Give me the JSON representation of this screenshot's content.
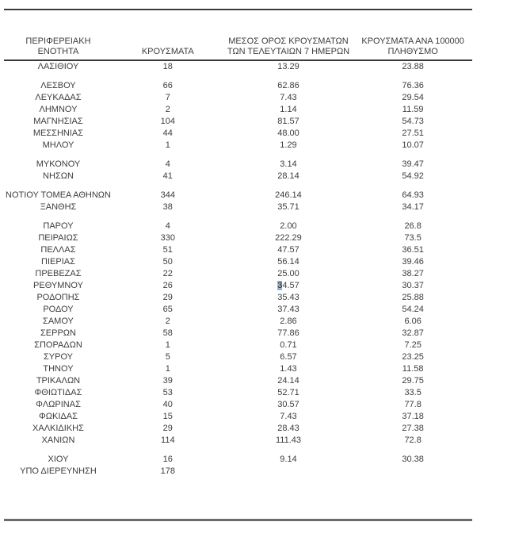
{
  "table": {
    "columns": [
      {
        "name": "region",
        "line1": "",
        "line2": "ΠΕΡΙΦΕΡΕΙΑΚΗ ΕΝΟΤΗΤΑ"
      },
      {
        "name": "cases",
        "line1": "",
        "line2": "ΚΡΟΥΣΜΑΤΑ"
      },
      {
        "name": "avg7",
        "line1": "ΜΕΣΟΣ ΟΡΟΣ ΚΡΟΥΣΜΑΤΩΝ",
        "line2": "ΤΩΝ ΤΕΛΕΥΤΑΙΩΝ 7 ΗΜΕΡΩΝ"
      },
      {
        "name": "per100k",
        "line1": "ΚΡΟΥΣΜΑΤΑ ΑΝΑ 100000",
        "line2": "ΠΛΗΘΥΣΜΟ"
      }
    ],
    "rows": [
      {
        "region": "ΛΑΣΙΘΙΟΥ",
        "cases": "18",
        "avg7": "13.29",
        "per100k": "23.88",
        "gap_before": false
      },
      {
        "region": "ΛΕΣΒΟΥ",
        "cases": "66",
        "avg7": "62.86",
        "per100k": "76.36",
        "gap_before": true
      },
      {
        "region": "ΛΕΥΚΑΔΑΣ",
        "cases": "7",
        "avg7": "7.43",
        "per100k": "29.54",
        "gap_before": false
      },
      {
        "region": "ΛΗΜΝΟΥ",
        "cases": "2",
        "avg7": "1.14",
        "per100k": "11.59",
        "gap_before": false
      },
      {
        "region": "ΜΑΓΝΗΣΙΑΣ",
        "cases": "104",
        "avg7": "81.57",
        "per100k": "54.73",
        "gap_before": false
      },
      {
        "region": "ΜΕΣΣΗΝΙΑΣ",
        "cases": "44",
        "avg7": "48.00",
        "per100k": "27.51",
        "gap_before": false
      },
      {
        "region": "ΜΗΛΟΥ",
        "cases": "1",
        "avg7": "1.29",
        "per100k": "10.07",
        "gap_before": false
      },
      {
        "region": "ΜΥΚΟΝΟΥ",
        "cases": "4",
        "avg7": "3.14",
        "per100k": "39.47",
        "gap_before": true
      },
      {
        "region": "ΝΗΣΩΝ",
        "cases": "41",
        "avg7": "28.14",
        "per100k": "54.92",
        "gap_before": false
      },
      {
        "region": "ΝΟΤΙΟΥ ΤΟΜΕΑ ΑΘΗΝΩΝ",
        "cases": "344",
        "avg7": "246.14",
        "per100k": "64.93",
        "gap_before": true
      },
      {
        "region": "ΞΑΝΘΗΣ",
        "cases": "38",
        "avg7": "35.71",
        "per100k": "34.17",
        "gap_before": false
      },
      {
        "region": "ΠΑΡΟΥ",
        "cases": "4",
        "avg7": "2.00",
        "per100k": "26.8",
        "gap_before": true
      },
      {
        "region": "ΠΕΙΡΑΙΩΣ",
        "cases": "330",
        "avg7": "222.29",
        "per100k": "73.5",
        "gap_before": false
      },
      {
        "region": "ΠΕΛΛΑΣ",
        "cases": "51",
        "avg7": "47.57",
        "per100k": "36.51",
        "gap_before": false
      },
      {
        "region": "ΠΙΕΡΙΑΣ",
        "cases": "50",
        "avg7": "56.14",
        "per100k": "39.46",
        "gap_before": false
      },
      {
        "region": "ΠΡΕΒΕΖΑΣ",
        "cases": "22",
        "avg7": "25.00",
        "per100k": "38.27",
        "gap_before": false
      },
      {
        "region": "ΡΕΘΥΜΝΟΥ",
        "cases": "26",
        "avg7": "34.57",
        "per100k": "30.37",
        "gap_before": false
      },
      {
        "region": "ΡΟΔΟΠΗΣ",
        "cases": "29",
        "avg7": "35.43",
        "per100k": "25.88",
        "gap_before": false
      },
      {
        "region": "ΡΟΔΟΥ",
        "cases": "65",
        "avg7": "37.43",
        "per100k": "54.24",
        "gap_before": false
      },
      {
        "region": "ΣΑΜΟΥ",
        "cases": "2",
        "avg7": "2.86",
        "per100k": "6.06",
        "gap_before": false
      },
      {
        "region": "ΣΕΡΡΩΝ",
        "cases": "58",
        "avg7": "77.86",
        "per100k": "32.87",
        "gap_before": false
      },
      {
        "region": "ΣΠΟΡΑΔΩΝ",
        "cases": "1",
        "avg7": "0.71",
        "per100k": "7.25",
        "gap_before": false
      },
      {
        "region": "ΣΥΡΟΥ",
        "cases": "5",
        "avg7": "6.57",
        "per100k": "23.25",
        "gap_before": false
      },
      {
        "region": "ΤΗΝΟΥ",
        "cases": "1",
        "avg7": "1.43",
        "per100k": "11.58",
        "gap_before": false
      },
      {
        "region": "ΤΡΙΚΑΛΩΝ",
        "cases": "39",
        "avg7": "24.14",
        "per100k": "29.75",
        "gap_before": false
      },
      {
        "region": "ΦΘΙΩΤΙΔΑΣ",
        "cases": "53",
        "avg7": "52.71",
        "per100k": "33.5",
        "gap_before": false
      },
      {
        "region": "ΦΛΩΡΙΝΑΣ",
        "cases": "40",
        "avg7": "30.57",
        "per100k": "77.8",
        "gap_before": false
      },
      {
        "region": "ΦΩΚΙΔΑΣ",
        "cases": "15",
        "avg7": "7.43",
        "per100k": "37.18",
        "gap_before": false
      },
      {
        "region": "ΧΑΛΚΙΔΙΚΗΣ",
        "cases": "29",
        "avg7": "28.43",
        "per100k": "27.38",
        "gap_before": false
      },
      {
        "region": "ΧΑΝΙΩΝ",
        "cases": "114",
        "avg7": "111.43",
        "per100k": "72.8",
        "gap_before": false
      },
      {
        "region": "ΧΙΟΥ",
        "cases": "16",
        "avg7": "9.14",
        "per100k": "30.38",
        "gap_before": true
      },
      {
        "region": "ΥΠΟ ΔΙΕΡΕΥΝΗΣΗ",
        "cases": "178",
        "avg7": "",
        "per100k": "",
        "gap_before": false
      }
    ],
    "selection": {
      "row_index": 16,
      "column_index": 2,
      "selected_text": "3"
    },
    "colors": {
      "text": "#3d3d3d",
      "rule_dark": "#3a3a3a",
      "rule_bottom": "#6c6c6c",
      "selection_bg": "#9fb6ca"
    }
  }
}
